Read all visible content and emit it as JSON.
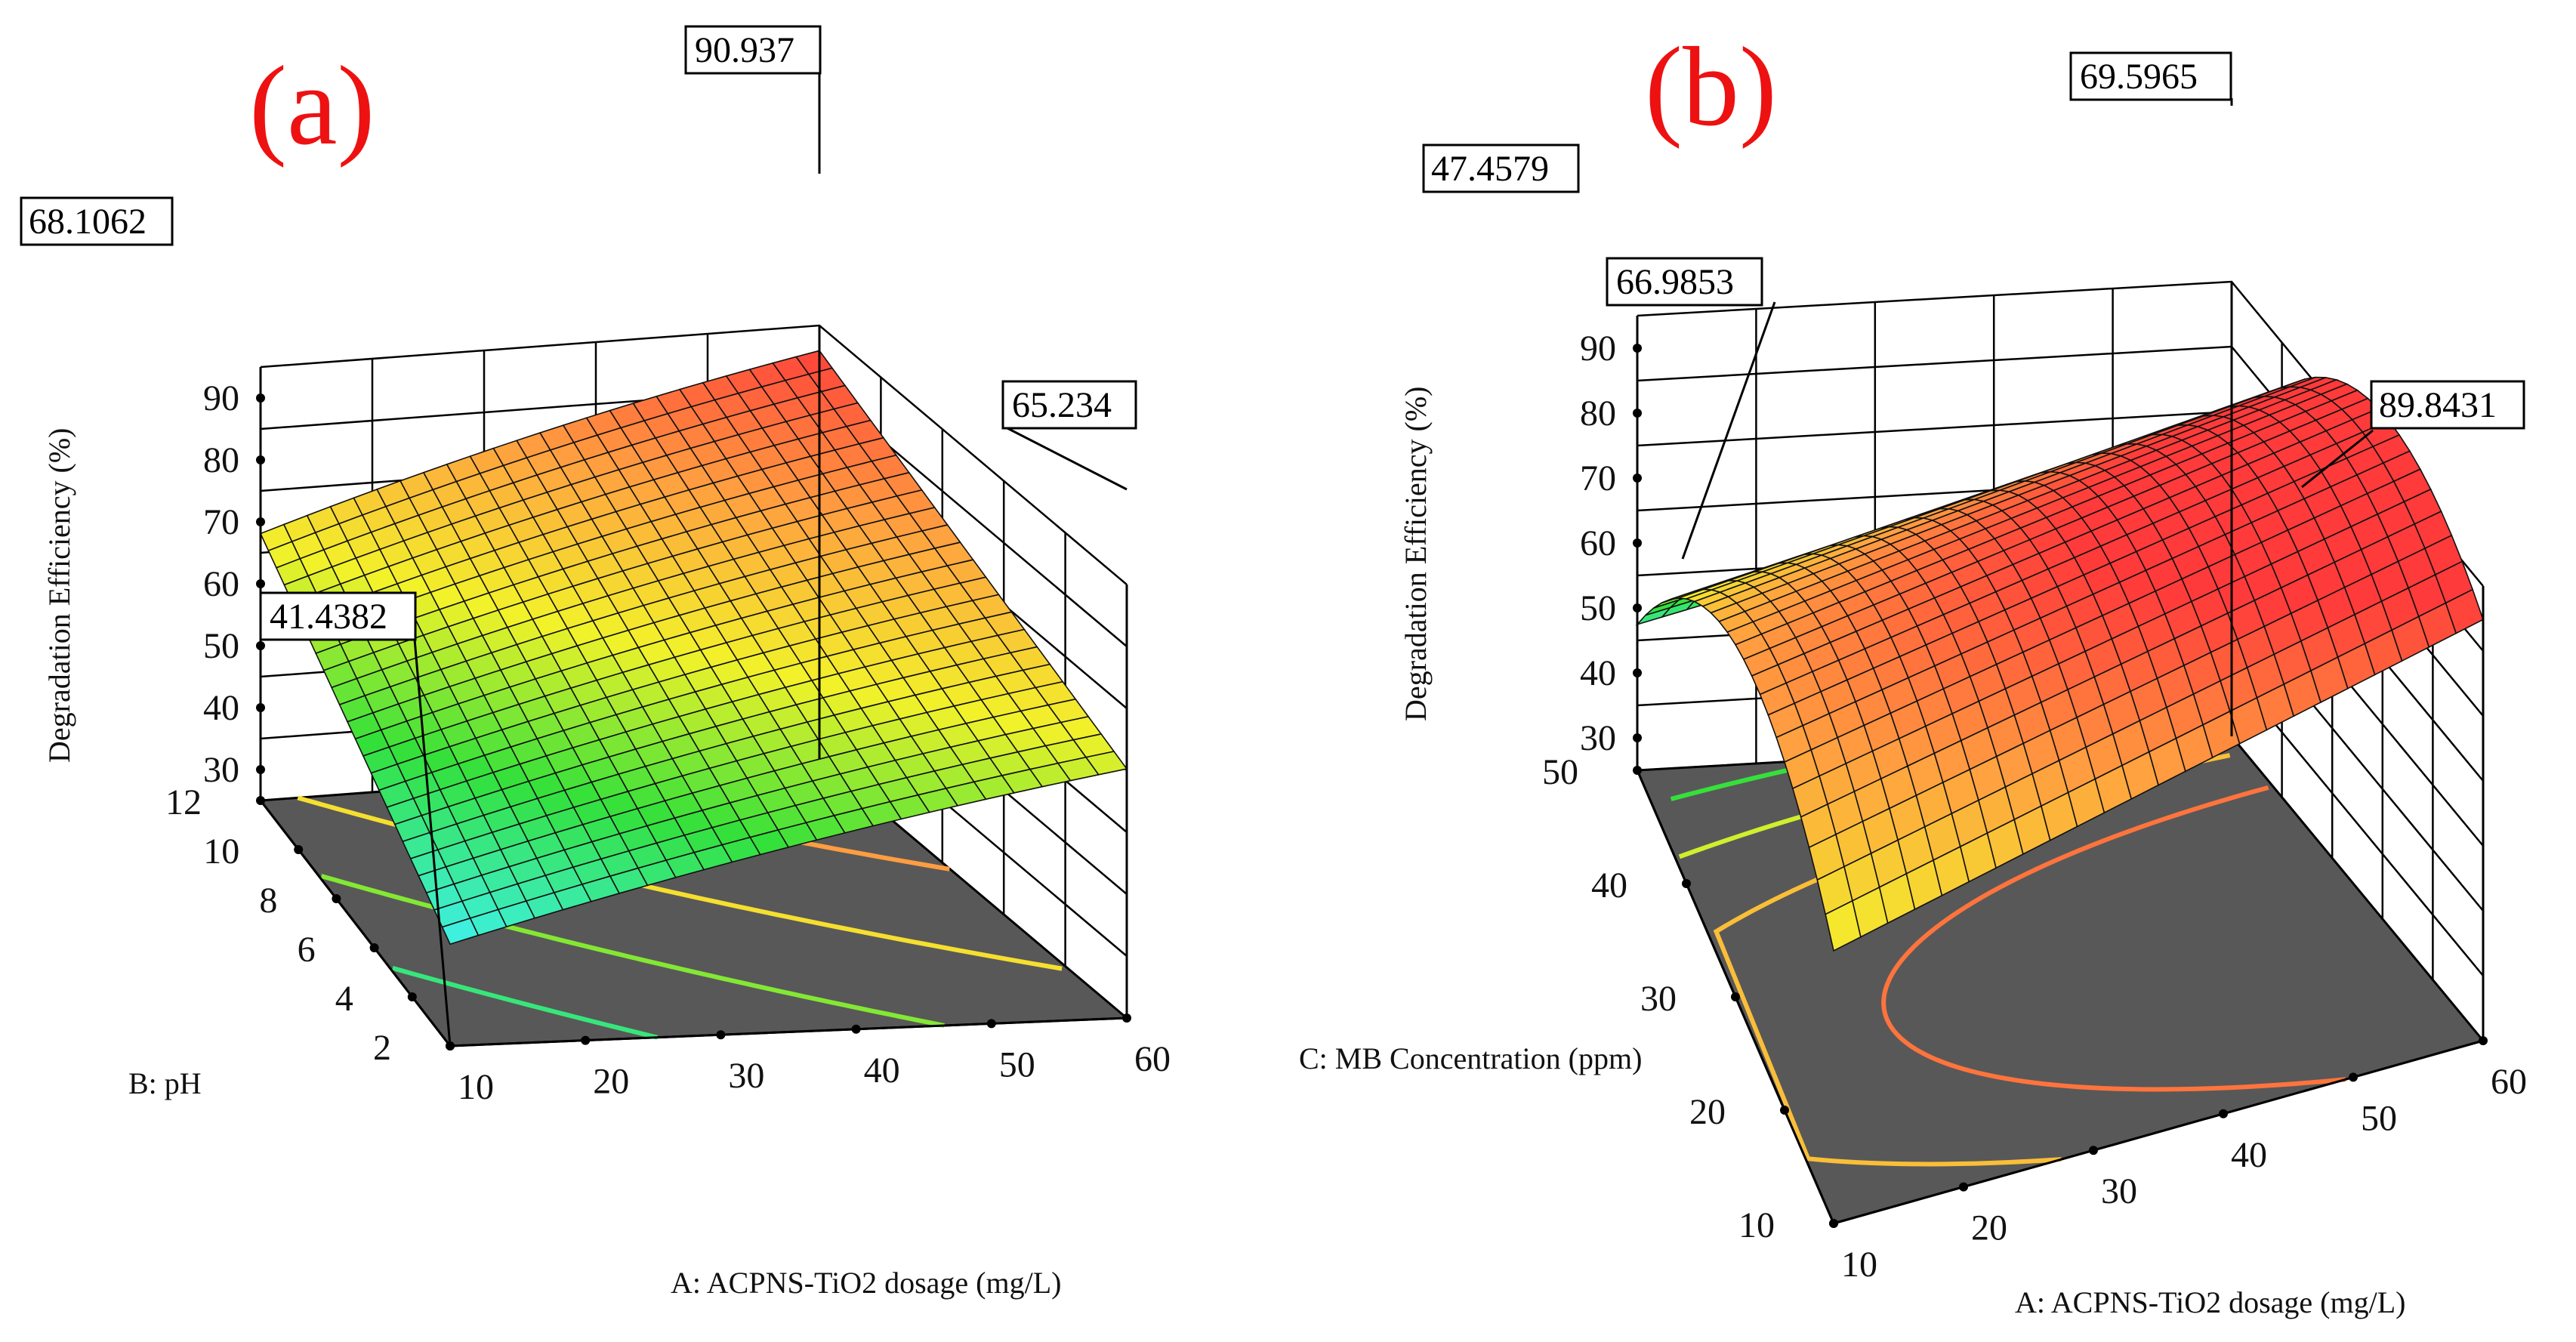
{
  "chart_data": [
    {
      "type": "surface3d",
      "panel_label": "(a)",
      "zlabel": "Degradation Efficiency (%)",
      "xlabel": "A: ACPNS-TiO2 dosage (mg/L)",
      "ylabel": "B: pH",
      "x_ticks": [
        "10",
        "20",
        "30",
        "40",
        "50",
        "60"
      ],
      "y_ticks": [
        "2",
        "4",
        "6",
        "8",
        "10",
        "12"
      ],
      "z_ticks": [
        "30",
        "40",
        "50",
        "60",
        "70",
        "80",
        "90"
      ],
      "x_range": [
        10,
        60
      ],
      "y_range": [
        2,
        12
      ],
      "z_range": [
        25,
        95
      ],
      "corner_values": {
        "x_min_y_min": 41.4382,
        "x_max_y_min": 65.234,
        "x_max_y_max": 90.937,
        "x_min_y_max": 68.1062
      },
      "callouts": [
        "90.937",
        "68.1062",
        "65.234",
        "41.4382"
      ],
      "contour_levels": [
        40,
        50,
        60,
        70,
        80
      ],
      "color_scale": [
        "#4aa9ff",
        "#3ef0e0",
        "#33e03a",
        "#f2f22a",
        "#ffa040",
        "#ff3a3a"
      ],
      "floor_color": "#585858"
    },
    {
      "type": "surface3d",
      "panel_label": "(b)",
      "zlabel": "Degradation Efficiency (%)",
      "xlabel": "A: ACPNS-TiO2 dosage (mg/L)",
      "ylabel": "C: MB Concentration (ppm)",
      "x_ticks": [
        "10",
        "20",
        "30",
        "40",
        "50",
        "60"
      ],
      "y_ticks": [
        "10",
        "20",
        "30",
        "40",
        "50"
      ],
      "z_ticks": [
        "30",
        "40",
        "50",
        "60",
        "70",
        "80",
        "90"
      ],
      "x_range": [
        10,
        60
      ],
      "y_range": [
        10,
        50
      ],
      "z_range": [
        25,
        95
      ],
      "corner_values": {
        "x_min_y_min": 66.9853,
        "x_max_y_min": 89.8431,
        "x_max_y_max": 69.5965,
        "x_min_y_max": 47.4579
      },
      "callouts": [
        "69.5965",
        "47.4579",
        "66.9853",
        "89.8431"
      ],
      "contour_levels": [
        55,
        65,
        75,
        85
      ],
      "color_scale": [
        "#4aa9ff",
        "#3ef0e0",
        "#33e03a",
        "#f2f22a",
        "#ffa040",
        "#ff3a3a"
      ],
      "floor_color": "#585858"
    }
  ]
}
